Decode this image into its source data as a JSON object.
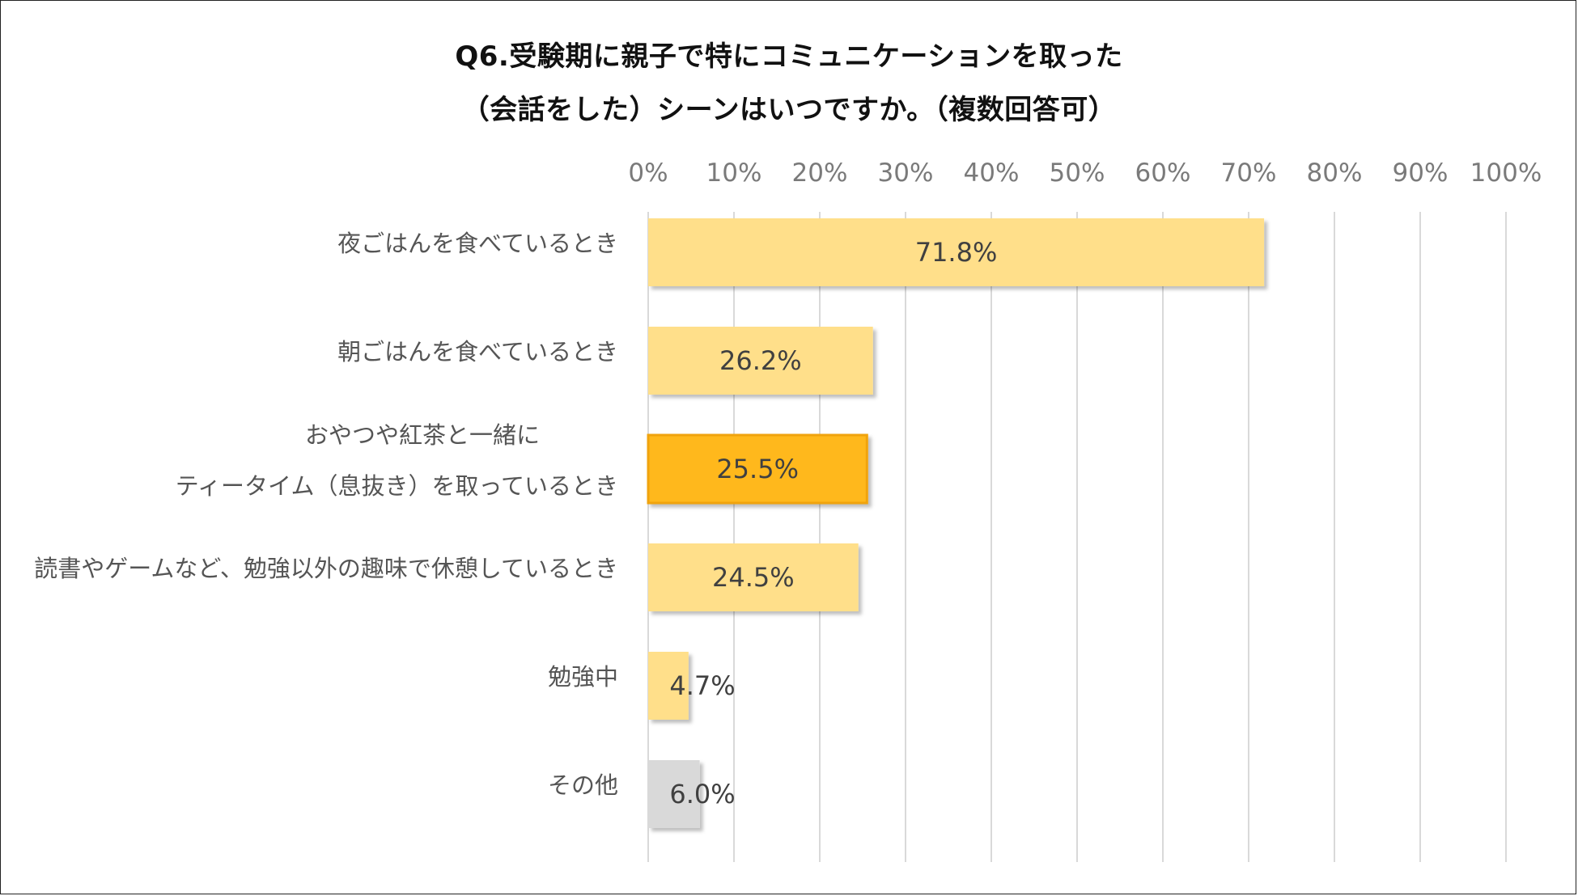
{
  "title_line1": "Q6.受験期に親子で特にコミュニケーションを取った",
  "title_line2": "（会話をした）シーンはいつですか。（複数回答可）",
  "chart_data": {
    "type": "bar",
    "orientation": "horizontal",
    "title": "Q6.受験期に親子で特にコミュニケーションを取った（会話をした）シーンはいつですか。（複数回答可）",
    "xlim": [
      0,
      100
    ],
    "ticks": [
      "0%",
      "10%",
      "20%",
      "30%",
      "40%",
      "50%",
      "60%",
      "70%",
      "80%",
      "90%",
      "100%"
    ],
    "grid": true,
    "categories": [
      [
        "夜ごはんを食べているとき"
      ],
      [
        "朝ごはんを食べているとき"
      ],
      [
        "おやつや紅茶と一緒に",
        "ティータイム（息抜き）を取っているとき"
      ],
      [
        "読書やゲームなど、勉強以外の趣味で休憩しているとき"
      ],
      [
        "勉強中"
      ],
      [
        "その他"
      ]
    ],
    "values": [
      71.8,
      26.2,
      25.5,
      24.5,
      4.7,
      6.0
    ],
    "value_labels": [
      "71.8%",
      "26.2%",
      "25.5%",
      "24.5%",
      "4.7%",
      "6.0%"
    ],
    "bar_colors": [
      "#ffdf8a",
      "#ffdf8a",
      "#ffb81c",
      "#ffdf8a",
      "#ffdf8a",
      "#d9d9d9"
    ]
  }
}
